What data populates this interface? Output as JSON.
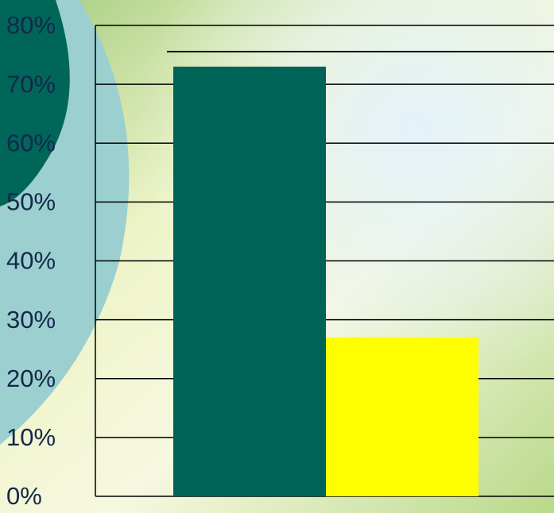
{
  "chart_data": {
    "type": "bar",
    "categories": [
      null,
      null
    ],
    "values": [
      73,
      27
    ],
    "colors": [
      "#006358",
      "#ffff00"
    ],
    "ylim": [
      0,
      80
    ],
    "yticks": [
      {
        "value": 0,
        "label": "0%"
      },
      {
        "value": 10,
        "label": "10%"
      },
      {
        "value": 20,
        "label": "20%"
      },
      {
        "value": 30,
        "label": "30%"
      },
      {
        "value": 40,
        "label": "40%"
      },
      {
        "value": 50,
        "label": "50%"
      },
      {
        "value": 60,
        "label": "60%"
      },
      {
        "value": 70,
        "label": "70%"
      },
      {
        "value": 80,
        "label": "80%"
      }
    ],
    "grid": true
  }
}
